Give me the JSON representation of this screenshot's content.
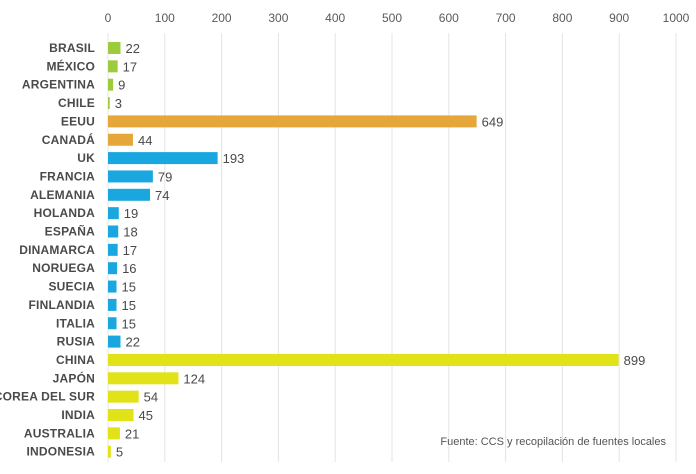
{
  "chart_data": {
    "type": "bar",
    "orientation": "horizontal",
    "categories": [
      "BRASIL",
      "MÉXICO",
      "ARGENTINA",
      "CHILE",
      "EEUU",
      "CANADÁ",
      "UK",
      "FRANCIA",
      "ALEMANIA",
      "HOLANDA",
      "ESPAÑA",
      "DINAMARCA",
      "NORUEGA",
      "SUECIA",
      "FINLANDIA",
      "ITALIA",
      "RUSIA",
      "CHINA",
      "JAPÓN",
      "COREA DEL SUR",
      "INDIA",
      "AUSTRALIA",
      "INDONESIA"
    ],
    "values": [
      22,
      17,
      9,
      3,
      649,
      44,
      193,
      79,
      74,
      19,
      18,
      17,
      16,
      15,
      15,
      15,
      22,
      899,
      124,
      54,
      45,
      21,
      5
    ],
    "colors": [
      "#9ccc3c",
      "#9ccc3c",
      "#9ccc3c",
      "#9ccc3c",
      "#e5a63a",
      "#e5a63a",
      "#1aa7e0",
      "#1aa7e0",
      "#1aa7e0",
      "#1aa7e0",
      "#1aa7e0",
      "#1aa7e0",
      "#1aa7e0",
      "#1aa7e0",
      "#1aa7e0",
      "#1aa7e0",
      "#1aa7e0",
      "#e2e218",
      "#e2e218",
      "#e2e218",
      "#e2e218",
      "#e2e218",
      "#e2e218"
    ],
    "xlim": [
      0,
      1000
    ],
    "xticks": [
      0,
      100,
      200,
      300,
      400,
      500,
      600,
      700,
      800,
      900,
      1000
    ],
    "grid": true,
    "title": "",
    "xlabel": "",
    "ylabel": ""
  },
  "source_note": "Fuente:  CCS y recopilación de fuentes locales"
}
